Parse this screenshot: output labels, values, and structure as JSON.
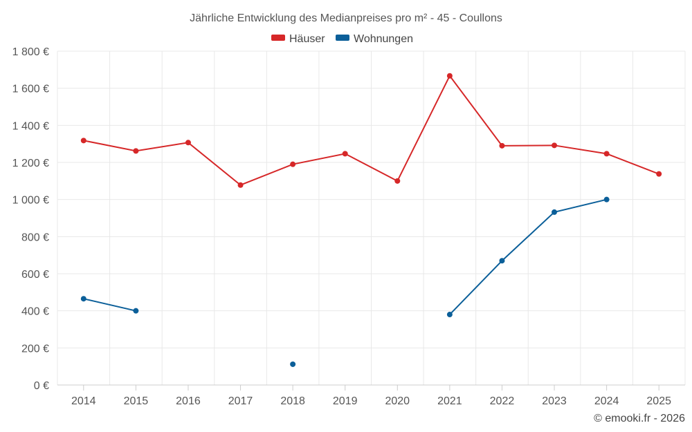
{
  "chart_data": {
    "type": "line",
    "title": "Jährliche Entwicklung des Medianpreises pro m² - 45 - Coullons",
    "categories": [
      "2014",
      "2015",
      "2016",
      "2017",
      "2018",
      "2019",
      "2020",
      "2021",
      "2022",
      "2023",
      "2024",
      "2025"
    ],
    "y_tick_labels": [
      "0 €",
      "200 €",
      "400 €",
      "600 €",
      "800 €",
      "1 000 €",
      "1 200 €",
      "1 400 €",
      "1 600 €",
      "1 800 €"
    ],
    "ylim": [
      0,
      1800
    ],
    "y_step": 200,
    "grid": true,
    "legend_position": "top-center",
    "series": [
      {
        "name": "Häuser",
        "color": "#d62728",
        "values": [
          1318,
          1262,
          1307,
          1078,
          1190,
          1247,
          1100,
          1667,
          1290,
          1292,
          1247,
          1138
        ]
      },
      {
        "name": "Wohnungen",
        "color": "#0b5f99",
        "values": [
          465,
          400,
          null,
          null,
          112,
          null,
          null,
          380,
          670,
          932,
          1000,
          null
        ]
      }
    ]
  },
  "credit": "© emooki.fr - 2026"
}
